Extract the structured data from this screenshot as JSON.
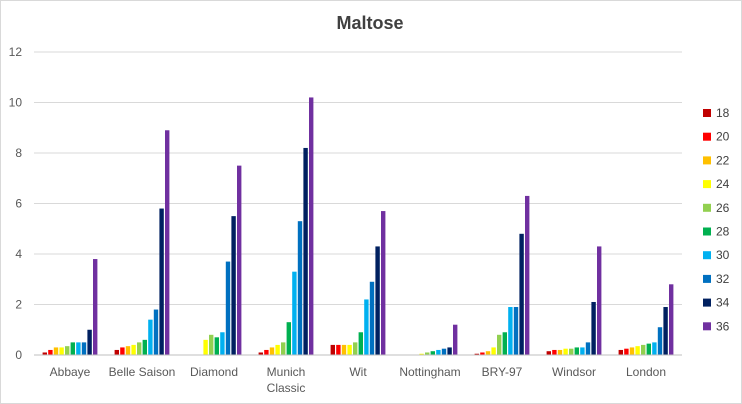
{
  "chart_data": {
    "type": "bar",
    "title": "Maltose",
    "xlabel": "",
    "ylabel": "",
    "ylim": [
      0,
      12
    ],
    "yticks": [
      0,
      2,
      4,
      6,
      8,
      10,
      12
    ],
    "grid": true,
    "legend_position": "right",
    "categories": [
      [
        "Abbaye"
      ],
      [
        "Belle Saison"
      ],
      [
        "Diamond"
      ],
      [
        "Munich",
        "Classic"
      ],
      [
        "Wit"
      ],
      [
        "Nottingham"
      ],
      [
        "BRY-97"
      ],
      [
        "Windsor"
      ],
      [
        "London"
      ]
    ],
    "series": [
      {
        "name": "18",
        "color": "#c00000",
        "values": [
          0.1,
          0.2,
          0.0,
          0.1,
          0.4,
          0.0,
          0.05,
          0.15,
          0.2
        ]
      },
      {
        "name": "20",
        "color": "#ff0000",
        "values": [
          0.2,
          0.3,
          0.0,
          0.2,
          0.4,
          0.0,
          0.1,
          0.2,
          0.25
        ]
      },
      {
        "name": "22",
        "color": "#ffc000",
        "values": [
          0.3,
          0.35,
          0.0,
          0.3,
          0.4,
          0.0,
          0.15,
          0.2,
          0.3
        ]
      },
      {
        "name": "24",
        "color": "#ffff00",
        "values": [
          0.3,
          0.4,
          0.6,
          0.4,
          0.4,
          0.05,
          0.3,
          0.25,
          0.35
        ]
      },
      {
        "name": "26",
        "color": "#92d050",
        "values": [
          0.35,
          0.5,
          0.8,
          0.5,
          0.5,
          0.1,
          0.8,
          0.25,
          0.4
        ]
      },
      {
        "name": "28",
        "color": "#00b050",
        "values": [
          0.5,
          0.6,
          0.7,
          1.3,
          0.9,
          0.15,
          0.9,
          0.3,
          0.45
        ]
      },
      {
        "name": "30",
        "color": "#00b0f0",
        "values": [
          0.5,
          1.4,
          0.9,
          3.3,
          2.2,
          0.2,
          1.9,
          0.3,
          0.5
        ]
      },
      {
        "name": "32",
        "color": "#0070c0",
        "values": [
          0.5,
          1.8,
          3.7,
          5.3,
          2.9,
          0.25,
          1.9,
          0.5,
          1.1
        ]
      },
      {
        "name": "34",
        "color": "#002060",
        "values": [
          1.0,
          5.8,
          5.5,
          8.2,
          4.3,
          0.3,
          4.8,
          2.1,
          1.9
        ]
      },
      {
        "name": "36",
        "color": "#7030a0",
        "values": [
          3.8,
          8.9,
          7.5,
          10.2,
          5.7,
          1.2,
          6.3,
          4.3,
          2.8
        ]
      }
    ]
  }
}
